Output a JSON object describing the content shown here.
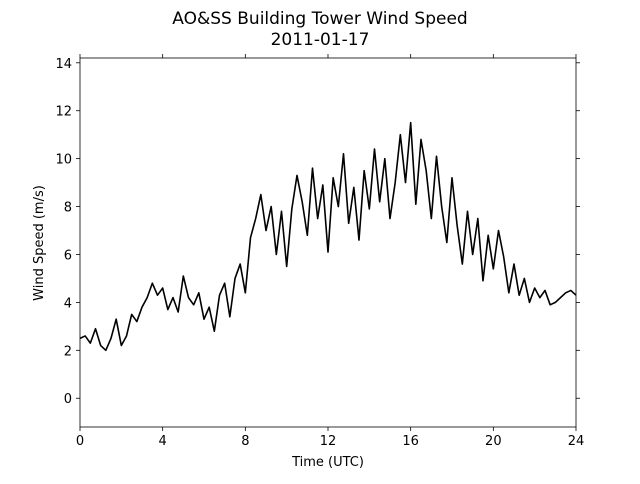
{
  "chart_data": {
    "type": "line",
    "title": "AO&SS Building Tower Wind Speed",
    "subtitle": "2011-01-17",
    "xlabel": "Time (UTC)",
    "ylabel": "Wind Speed (m/s)",
    "x": [
      0,
      0.25,
      0.5,
      0.75,
      1,
      1.25,
      1.5,
      1.75,
      2,
      2.25,
      2.5,
      2.75,
      3,
      3.25,
      3.5,
      3.75,
      4,
      4.25,
      4.5,
      4.75,
      5,
      5.25,
      5.5,
      5.75,
      6,
      6.25,
      6.5,
      6.75,
      7,
      7.25,
      7.5,
      7.75,
      8,
      8.25,
      8.5,
      8.75,
      9,
      9.25,
      9.5,
      9.75,
      10,
      10.25,
      10.5,
      10.75,
      11,
      11.25,
      11.5,
      11.75,
      12,
      12.25,
      12.5,
      12.75,
      13,
      13.25,
      13.5,
      13.75,
      14,
      14.25,
      14.5,
      14.75,
      15,
      15.25,
      15.5,
      15.75,
      16,
      16.25,
      16.5,
      16.75,
      17,
      17.25,
      17.5,
      17.75,
      18,
      18.25,
      18.5,
      18.75,
      19,
      19.25,
      19.5,
      19.75,
      20,
      20.25,
      20.5,
      20.75,
      21,
      21.25,
      21.5,
      21.75,
      22,
      22.25,
      22.5,
      22.75,
      23,
      23.25,
      23.5,
      23.75,
      24
    ],
    "series": [
      {
        "color": "#000000",
        "values": [
          2.5,
          2.6,
          2.3,
          2.9,
          2.2,
          2.0,
          2.5,
          3.3,
          2.2,
          2.6,
          3.5,
          3.2,
          3.8,
          4.2,
          4.8,
          4.3,
          4.6,
          3.7,
          4.2,
          3.6,
          5.1,
          4.2,
          3.9,
          4.4,
          3.3,
          3.8,
          2.8,
          4.3,
          4.8,
          3.4,
          5.0,
          5.6,
          4.4,
          6.7,
          7.5,
          8.5,
          7.0,
          8.0,
          6.0,
          7.8,
          5.5,
          7.9,
          9.3,
          8.2,
          6.8,
          9.6,
          7.5,
          8.9,
          6.1,
          9.2,
          8.0,
          10.2,
          7.3,
          8.8,
          6.6,
          9.5,
          7.9,
          10.4,
          8.2,
          10.0,
          7.5,
          9.0,
          11.0,
          9.0,
          11.5,
          8.1,
          10.8,
          9.5,
          7.5,
          10.1,
          8.0,
          6.5,
          9.2,
          7.2,
          5.6,
          7.8,
          6.0,
          7.5,
          4.9,
          6.8,
          5.4,
          7.0,
          5.9,
          4.4,
          5.6,
          4.3,
          5.0,
          4.0,
          4.6,
          4.2,
          4.5,
          3.9,
          4.0,
          4.2,
          4.4,
          4.5,
          4.3
        ]
      }
    ],
    "xlim": [
      0,
      24
    ],
    "xticks": [
      0,
      4,
      8,
      12,
      16,
      20,
      24
    ],
    "ylim": [
      -1.2,
      14.2
    ],
    "yticks": [
      0,
      2,
      4,
      6,
      8,
      10,
      12,
      14
    ]
  }
}
